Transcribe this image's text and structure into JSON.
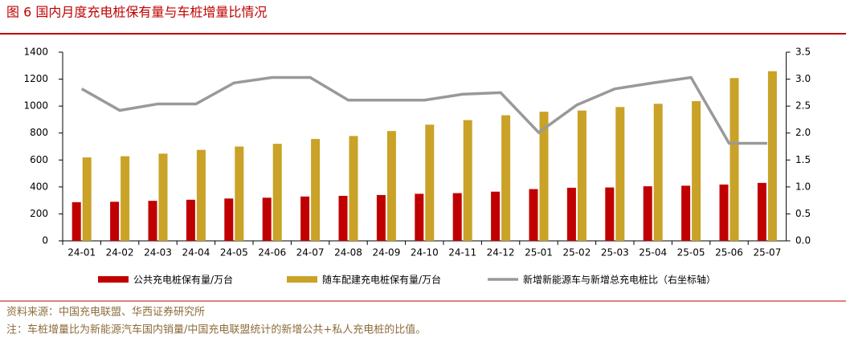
{
  "chart_data": {
    "type": "bar-line",
    "title": "图 6 国内月度充电桩保有量与车桩增量比情况",
    "categories": [
      "24-01",
      "24-02",
      "24-03",
      "24-04",
      "24-05",
      "24-06",
      "24-07",
      "24-08",
      "24-09",
      "24-10",
      "24-11",
      "24-12",
      "25-01",
      "25-02",
      "25-03",
      "25-04",
      "25-05",
      "25-06",
      "25-07"
    ],
    "series": [
      {
        "name": "公共充电桩保有量/万台",
        "color": "#c00000",
        "type": "bar",
        "values": [
          287,
          290,
          297,
          305,
          314,
          320,
          329,
          334,
          340,
          349,
          354,
          365,
          384,
          394,
          396,
          405,
          409,
          418,
          430
        ]
      },
      {
        "name": "随车配建充电桩保有量/万台",
        "color": "#c9a227",
        "type": "bar",
        "values": [
          619,
          628,
          647,
          675,
          700,
          720,
          756,
          778,
          815,
          862,
          896,
          932,
          958,
          967,
          993,
          1017,
          1037,
          1208,
          1259
        ]
      },
      {
        "name": "新增新能源车与新增总充电桩比（右坐标轴）",
        "color": "#999999",
        "type": "line",
        "axis": "y2",
        "values": [
          2.82,
          2.42,
          2.54,
          2.54,
          2.93,
          3.03,
          3.03,
          2.61,
          2.61,
          2.61,
          2.72,
          2.75,
          2.01,
          2.52,
          2.82,
          2.93,
          3.03,
          1.81,
          1.81
        ]
      }
    ],
    "ylim": [
      0,
      1400
    ],
    "yticks": [
      0,
      200,
      400,
      600,
      800,
      1000,
      1200,
      1400
    ],
    "y2lim": [
      0,
      3.5
    ],
    "y2ticks": [
      {
        "value": 0,
        "label": "0.0"
      },
      0.5,
      {
        "value": 1,
        "label": "1.0"
      },
      1.5,
      {
        "value": 2,
        "label": "2.0"
      },
      2.5,
      {
        "value": 3,
        "label": "3.0"
      },
      3.5
    ],
    "source": "资料来源：中国充电联盟、华西证券研究所",
    "note": "注：车桩增量比为新能源汽车国内销量/中国充电联盟统计的新增公共+私人充电桩的比值。"
  }
}
